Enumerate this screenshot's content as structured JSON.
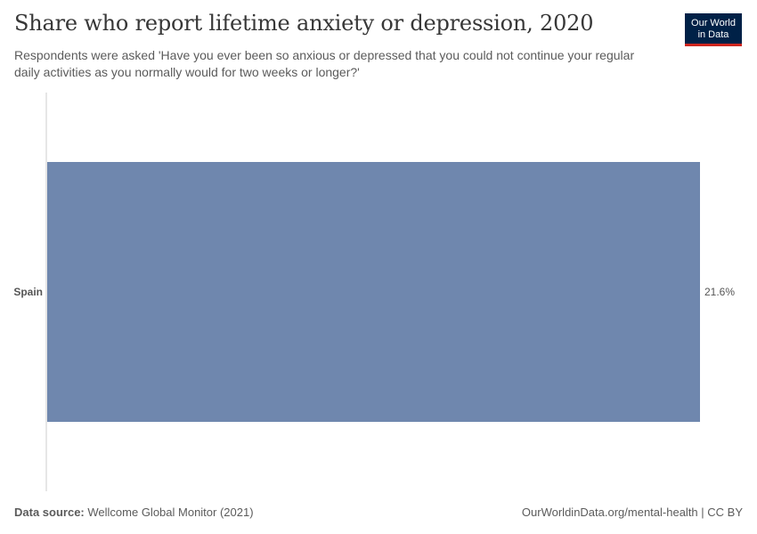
{
  "header": {
    "title": "Share who report lifetime anxiety or depression, 2020",
    "subtitle": "Respondents were asked 'Have you ever been so anxious or depressed that you could not continue your regular daily activities as you normally would for two weeks or longer?'"
  },
  "logo": {
    "line1": "Our World",
    "line2": "in Data"
  },
  "colors": {
    "bar": "#6f87ae",
    "axis": "#cccccc",
    "label": "#555555",
    "value": "#555555"
  },
  "chart_data": {
    "type": "bar",
    "orientation": "horizontal",
    "categories": [
      "Spain"
    ],
    "values": [
      21.6
    ],
    "value_labels": [
      "21.6%"
    ],
    "xlim": [
      0,
      21.6
    ],
    "grid": false,
    "title": "Share who report lifetime anxiety or depression, 2020"
  },
  "footer": {
    "source_label": "Data source:",
    "source_text": "Wellcome Global Monitor (2021)",
    "right_text": "OurWorldinData.org/mental-health | CC BY"
  }
}
